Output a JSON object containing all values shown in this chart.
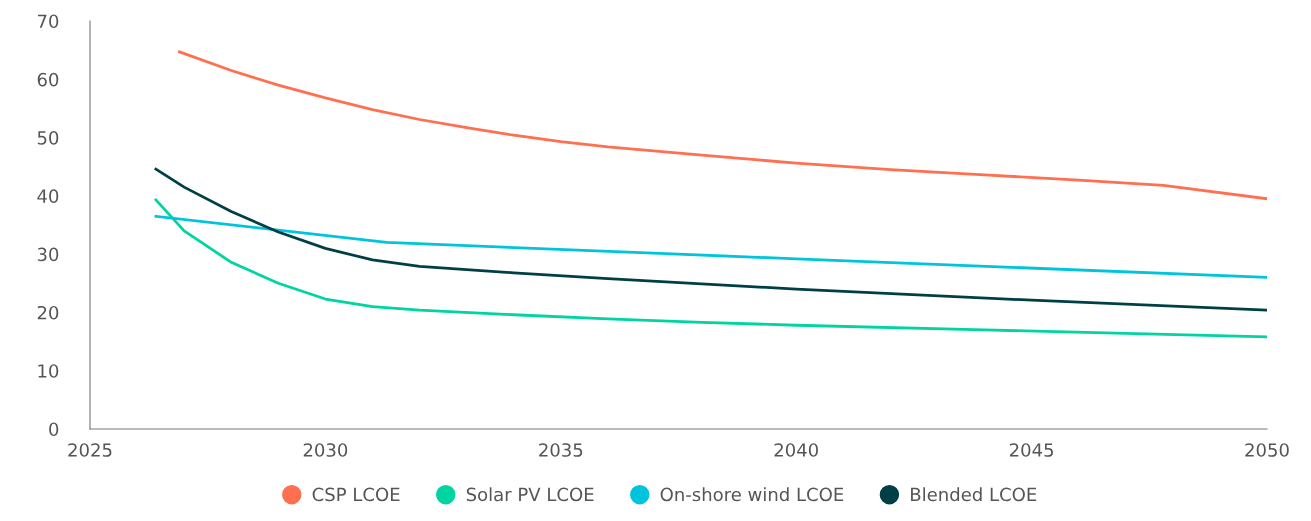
{
  "chart_data": {
    "type": "line",
    "xlim": [
      2025,
      2050
    ],
    "xticks": [
      2025,
      2030,
      2035,
      2040,
      2045,
      2050
    ],
    "ylim": [
      0,
      70
    ],
    "yticks": [
      0,
      10,
      20,
      30,
      40,
      50,
      60,
      70
    ],
    "grid": false,
    "legend": "bottom",
    "marker": "none",
    "line_style": "solid",
    "series": [
      {
        "name": "CSP LCOE",
        "color": "#ff6f50",
        "x": [
          2026.9,
          2028,
          2029,
          2030,
          2031,
          2032,
          2033,
          2034,
          2035,
          2036,
          2038,
          2040,
          2042,
          2044,
          2046,
          2047.8,
          2050
        ],
        "values": [
          64.7,
          61.5,
          59,
          56.8,
          54.8,
          53.1,
          51.7,
          50.4,
          49.3,
          48.4,
          47,
          45.6,
          44.5,
          43.6,
          42.7,
          41.8,
          39.5
        ]
      },
      {
        "name": "Solar PV LCOE",
        "color": "#00d4a0",
        "x": [
          2026.4,
          2027,
          2028,
          2029,
          2030,
          2031,
          2032,
          2034,
          2036,
          2038,
          2040,
          2044,
          2047,
          2050
        ],
        "values": [
          39.3,
          34,
          28.6,
          25,
          22.3,
          21,
          20.4,
          19.6,
          18.9,
          18.3,
          17.8,
          17,
          16.4,
          15.8
        ]
      },
      {
        "name": "On-shore wind LCOE",
        "color": "#00c4dc",
        "x": [
          2026.4,
          2031.3,
          2040,
          2050
        ],
        "values": [
          36.5,
          32,
          29.2,
          26
        ]
      },
      {
        "name": "Blended LCOE",
        "color": "#003f45",
        "x": [
          2026.4,
          2027,
          2028,
          2029,
          2030,
          2031,
          2032,
          2034,
          2036,
          2040,
          2045,
          2050
        ],
        "values": [
          44.6,
          41.5,
          37.3,
          33.8,
          31,
          29,
          27.9,
          26.8,
          25.8,
          24,
          22.1,
          20.4
        ]
      }
    ]
  }
}
